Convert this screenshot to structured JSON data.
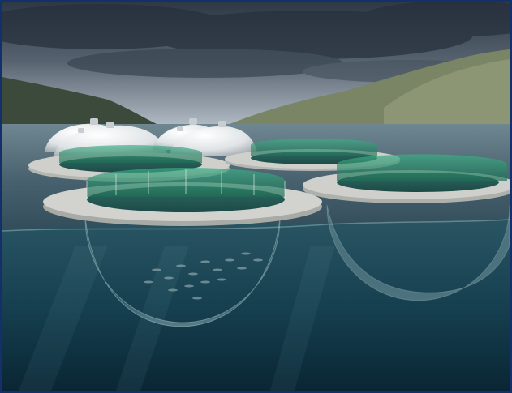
{
  "scene": {
    "subject": "offshore-fish-farm-domes",
    "colors": {
      "sky_dark": "#3b4654",
      "sky_light": "#b9c3cc",
      "sea_surface": "#4d6775",
      "water_deep": "#0f3444",
      "concrete": "#c9c9c4",
      "net_green": "#2f8f70",
      "dome_white": "#e8ebec"
    }
  }
}
